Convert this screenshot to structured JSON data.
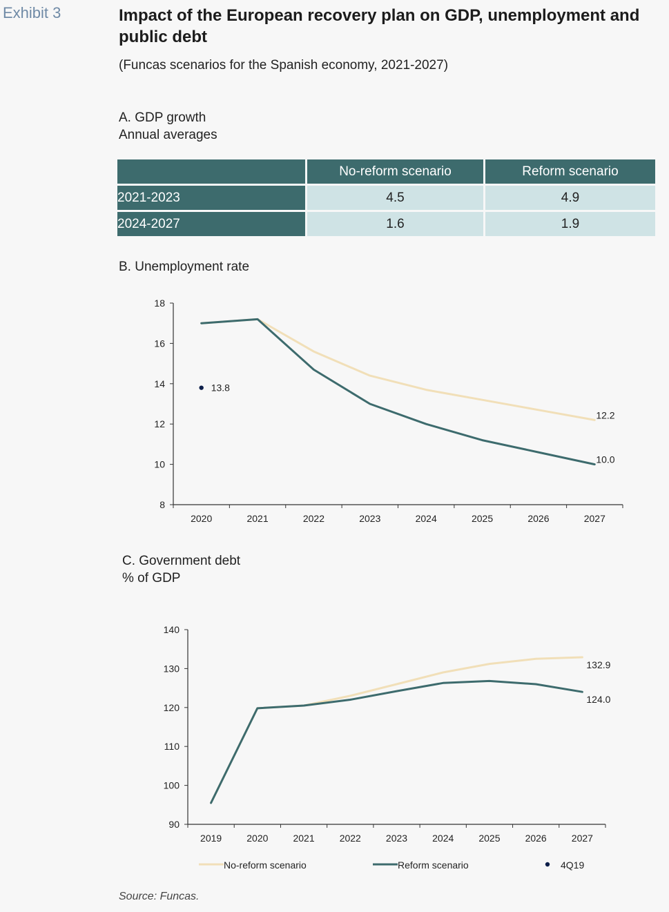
{
  "exhibit": "Exhibit 3",
  "title": "Impact of the European recovery plan on GDP, unemployment and public debt",
  "subtitle": "(Funcas scenarios for the Spanish economy, 2021-2027)",
  "colors": {
    "no_reform": "#f1dfb8",
    "reform": "#3d6b6d",
    "marker": "#0d1f4a",
    "table_header": "#3d6b6d",
    "table_cell": "#cfe3e5"
  },
  "chart_data": [
    {
      "type": "table",
      "title": "A. GDP growth",
      "subtitle": "Annual averages",
      "columns": [
        "No-reform scenario",
        "Reform scenario"
      ],
      "rows": [
        {
          "label": "2021-2023",
          "values": [
            "4.5",
            "4.9"
          ]
        },
        {
          "label": "2024-2027",
          "values": [
            "1.6",
            "1.9"
          ]
        }
      ]
    },
    {
      "type": "line",
      "title": "B. Unemployment rate",
      "x": [
        "2020",
        "2021",
        "2022",
        "2023",
        "2024",
        "2025",
        "2026",
        "2027"
      ],
      "ylim": [
        8,
        18
      ],
      "yticks": [
        "8",
        "10",
        "12",
        "14",
        "16",
        "18"
      ],
      "series": [
        {
          "name": "No-reform scenario",
          "values": [
            17.0,
            17.2,
            15.6,
            14.4,
            13.7,
            13.2,
            12.7,
            12.2
          ]
        },
        {
          "name": "Reform scenario",
          "values": [
            17.0,
            17.2,
            14.7,
            13.0,
            12.0,
            11.2,
            10.6,
            10.0
          ]
        }
      ],
      "marker": {
        "x": "2020",
        "y": 13.8,
        "label": "13.8"
      },
      "end_labels": {
        "no_reform": "12.2",
        "reform": "10.0"
      }
    },
    {
      "type": "line",
      "title": "C. Government debt",
      "subtitle": "% of GDP",
      "x": [
        "2019",
        "2020",
        "2021",
        "2022",
        "2023",
        "2024",
        "2025",
        "2026",
        "2027"
      ],
      "ylim": [
        90,
        140
      ],
      "yticks": [
        "90",
        "100",
        "110",
        "120",
        "130",
        "140"
      ],
      "series": [
        {
          "name": "No-reform scenario",
          "values": [
            95.5,
            119.8,
            120.5,
            123.0,
            126.0,
            129.0,
            131.2,
            132.5,
            132.9
          ]
        },
        {
          "name": "Reform scenario",
          "values": [
            95.5,
            119.8,
            120.5,
            122.0,
            124.2,
            126.3,
            126.8,
            126.0,
            124.0
          ]
        }
      ],
      "end_labels": {
        "no_reform": "132.9",
        "reform": "124.0"
      }
    }
  ],
  "legend": [
    {
      "label": "No-reform scenario",
      "kind": "line",
      "color": "#f1dfb8"
    },
    {
      "label": "Reform scenario",
      "kind": "line",
      "color": "#3d6b6d"
    },
    {
      "label": "4Q19",
      "kind": "dot",
      "color": "#0d1f4a"
    }
  ],
  "source": "Source: Funcas."
}
